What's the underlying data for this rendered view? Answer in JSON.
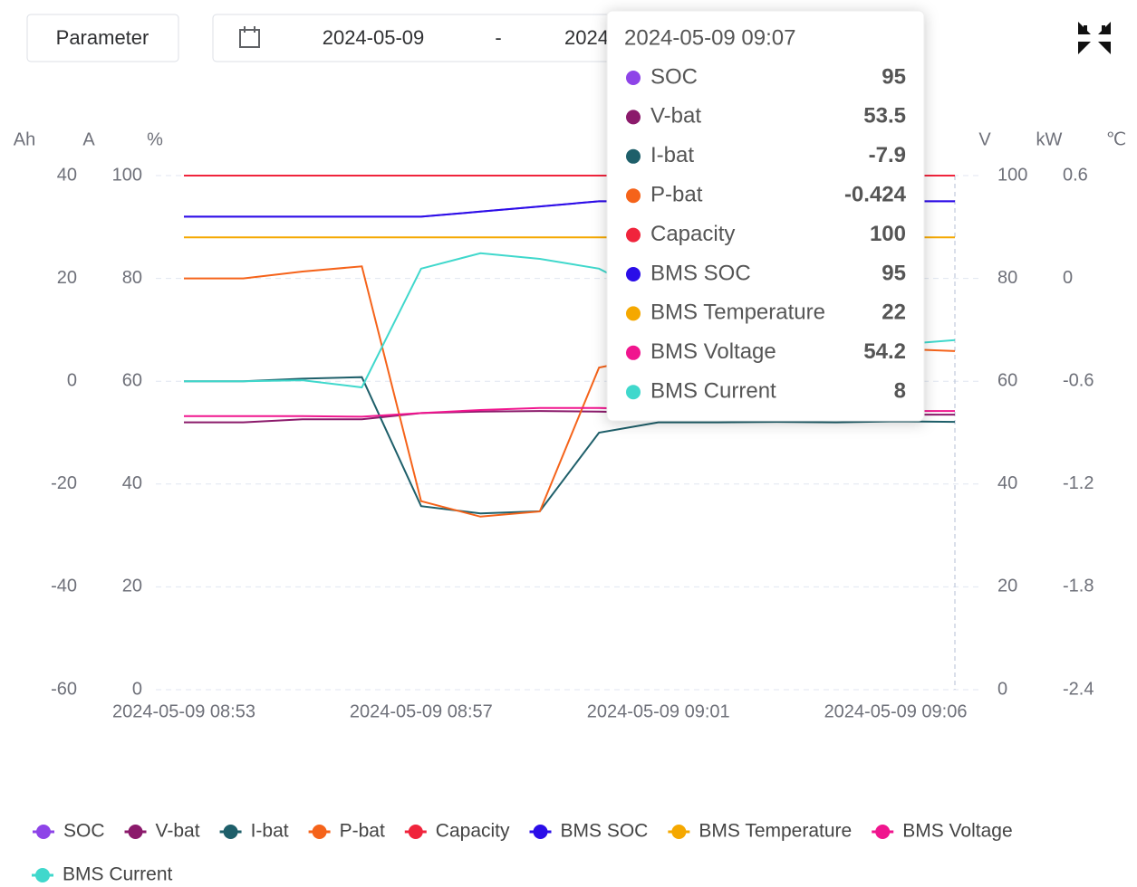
{
  "controls": {
    "button": "Parameter",
    "start_date": "2024-05-09",
    "separator": "-",
    "end_date": "2024-05-09"
  },
  "chart_data": {
    "type": "line",
    "categories": [
      "2024-05-09 08:53",
      null,
      null,
      null,
      "2024-05-09 08:57",
      null,
      null,
      null,
      "2024-05-09 09:01",
      null,
      null,
      null,
      "2024-05-09 09:06",
      null
    ],
    "tooltip_title": "2024-05-09 09:07",
    "y3label": "Ah",
    "y2label": "A",
    "y2lim": [
      -60,
      40
    ],
    "y2ticks": [
      -60,
      -40,
      -20,
      0,
      20,
      40
    ],
    "ylabel": "%",
    "ylim": [
      0,
      100
    ],
    "yticks": [
      0,
      20,
      40,
      60,
      80,
      100
    ],
    "y4label": "V",
    "y4lim": [
      0,
      100
    ],
    "y4ticks": [
      0,
      20,
      40,
      60,
      80,
      100
    ],
    "y5label": "kW",
    "y5lim": [
      -2.4,
      0.6
    ],
    "y5ticks": [
      -2.4,
      -1.8,
      -1.2,
      -0.6,
      0,
      0.6
    ],
    "y6label": "℃",
    "y6lim": [
      0,
      25
    ],
    "grid": true,
    "series": [
      {
        "name": "SOC",
        "color": "#8e44e8",
        "axis": "y",
        "values": [
          92,
          92,
          92,
          92,
          92,
          93,
          94,
          95,
          95,
          95,
          95,
          95,
          95,
          95
        ]
      },
      {
        "name": "V-bat",
        "color": "#8b1a6b",
        "axis": "y4",
        "values": [
          52,
          52,
          52.6,
          52.6,
          53.8,
          54.1,
          54.2,
          54.1,
          53.8,
          53.6,
          53.6,
          53.5,
          53.5,
          53.5
        ]
      },
      {
        "name": "I-bat",
        "color": "#1e5f6a",
        "axis": "y2",
        "values": [
          0,
          0,
          0.5,
          0.8,
          -24.3,
          -25.7,
          -25.3,
          -10,
          -8,
          -8,
          -7.9,
          -8,
          -7.8,
          -7.9
        ]
      },
      {
        "name": "P-bat",
        "color": "#f5631a",
        "axis": "y5",
        "values": [
          0,
          0,
          0.04,
          0.07,
          -1.3,
          -1.39,
          -1.36,
          -0.52,
          -0.45,
          -0.43,
          -0.42,
          -0.42,
          -0.41,
          -0.424
        ]
      },
      {
        "name": "Capacity",
        "color": "#f0243c",
        "axis": "y",
        "values": [
          100,
          100,
          100,
          100,
          100,
          100,
          100,
          100,
          100,
          100,
          100,
          100,
          100,
          100
        ]
      },
      {
        "name": "BMS SOC",
        "color": "#2a0de8",
        "axis": "y",
        "values": [
          92,
          92,
          92,
          92,
          92,
          93,
          94,
          95,
          95,
          95,
          95,
          95,
          95,
          95
        ]
      },
      {
        "name": "BMS Temperature",
        "color": "#f5a800",
        "axis": "y6",
        "values": [
          22,
          22,
          22,
          22,
          22,
          22,
          22,
          22,
          22,
          22,
          22,
          22,
          22,
          22
        ]
      },
      {
        "name": "BMS Voltage",
        "color": "#f0158e",
        "axis": "y4",
        "values": [
          53.2,
          53.2,
          53.2,
          53.1,
          53.8,
          54.4,
          54.8,
          54.8,
          54.5,
          54.3,
          54.2,
          54.2,
          54.2,
          54.2
        ]
      },
      {
        "name": "BMS Current",
        "color": "#40d8cc",
        "axis": "y2",
        "values": [
          0,
          0,
          0.2,
          -1.2,
          21.9,
          24.9,
          23.8,
          21.9,
          16,
          12,
          10,
          9,
          7.1,
          8
        ]
      }
    ]
  }
}
